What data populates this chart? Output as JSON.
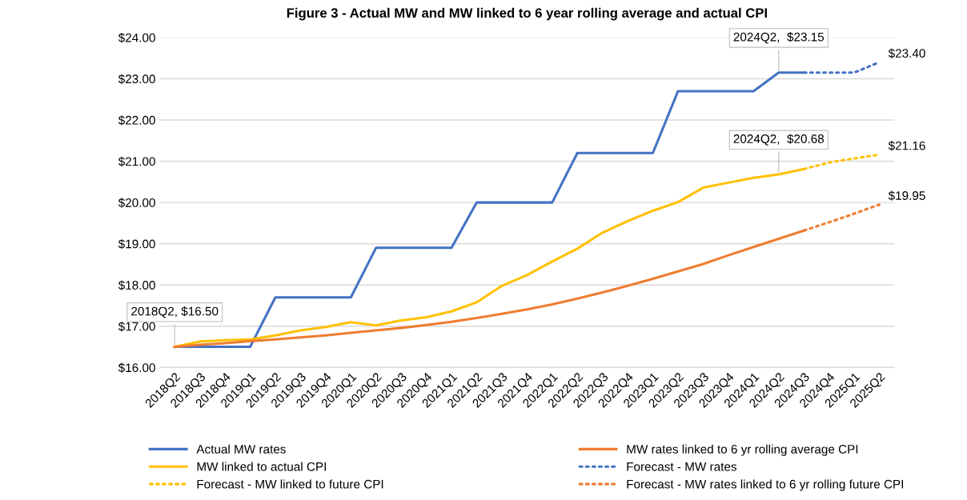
{
  "chart_data": {
    "type": "line",
    "title": "Figure 3 - Actual MW and MW linked to 6 year rolling average and actual CPI",
    "categories": [
      "2018Q2",
      "2018Q3",
      "2018Q4",
      "2019Q1",
      "2019Q2",
      "2019Q3",
      "2019Q4",
      "2020Q1",
      "2020Q2",
      "2020Q3",
      "2020Q4",
      "2021Q1",
      "2021Q2",
      "2021Q3",
      "2021Q4",
      "2022Q1",
      "2022Q2",
      "2022Q3",
      "2022Q4",
      "2023Q1",
      "2023Q2",
      "2023Q3",
      "2023Q4",
      "2024Q1",
      "2024Q2",
      "2024Q3",
      "2024Q4",
      "2025Q1",
      "2025Q2"
    ],
    "series": [
      {
        "name": "Actual MW rates",
        "color": "#4472c4",
        "line_style": "solid",
        "values": [
          16.5,
          16.5,
          16.5,
          16.5,
          17.7,
          17.7,
          17.7,
          17.7,
          18.9,
          18.9,
          18.9,
          18.9,
          20.0,
          20.0,
          20.0,
          20.0,
          21.2,
          21.2,
          21.2,
          21.2,
          22.7,
          22.7,
          22.7,
          22.7,
          23.15,
          23.15,
          null,
          null,
          null
        ]
      },
      {
        "name": "MW linked to actual CPI",
        "color": "#ffc000",
        "line_style": "solid",
        "values": [
          16.5,
          16.63,
          16.66,
          16.68,
          16.78,
          16.9,
          16.98,
          17.1,
          17.02,
          17.14,
          17.22,
          17.36,
          17.58,
          17.98,
          18.24,
          18.57,
          18.88,
          19.27,
          19.55,
          19.8,
          20.01,
          20.36,
          20.48,
          20.6,
          20.68,
          20.81,
          null,
          null,
          null
        ]
      },
      {
        "name": "Forecast - MW linked to future CPI",
        "color": "#ffc000",
        "line_style": "dotted",
        "values": [
          null,
          null,
          null,
          null,
          null,
          null,
          null,
          null,
          null,
          null,
          null,
          null,
          null,
          null,
          null,
          null,
          null,
          null,
          null,
          null,
          null,
          null,
          null,
          null,
          null,
          20.81,
          20.97,
          21.07,
          21.16
        ]
      },
      {
        "name": "MW rates linked to 6 yr rolling average CPI",
        "color": "#ed7d31",
        "line_style": "solid",
        "values": [
          16.5,
          16.55,
          16.59,
          16.64,
          16.68,
          16.73,
          16.78,
          16.84,
          16.9,
          16.96,
          17.03,
          17.11,
          17.2,
          17.3,
          17.41,
          17.53,
          17.67,
          17.82,
          17.98,
          18.15,
          18.33,
          18.51,
          18.72,
          18.92,
          19.12,
          19.32,
          null,
          null,
          null
        ]
      },
      {
        "name": "Forecast - MW rates",
        "color": "#4472c4",
        "line_style": "dotted",
        "values": [
          null,
          null,
          null,
          null,
          null,
          null,
          null,
          null,
          null,
          null,
          null,
          null,
          null,
          null,
          null,
          null,
          null,
          null,
          null,
          null,
          null,
          null,
          null,
          null,
          null,
          23.15,
          23.15,
          23.15,
          23.4
        ]
      },
      {
        "name": "Forecast - MW rates linked to 6 yr rolling future CPI",
        "color": "#ed7d31",
        "line_style": "dotted",
        "values": [
          null,
          null,
          null,
          null,
          null,
          null,
          null,
          null,
          null,
          null,
          null,
          null,
          null,
          null,
          null,
          null,
          null,
          null,
          null,
          null,
          null,
          null,
          null,
          null,
          null,
          19.32,
          19.52,
          19.73,
          19.95
        ]
      }
    ],
    "annotations": [
      {
        "text": "2018Q2, $16.50",
        "x": "2018Q2",
        "y": 16.5
      },
      {
        "text": "2024Q2,  $23.15",
        "x": "2024Q2",
        "y": 23.15
      },
      {
        "text": "2024Q2,  $20.68",
        "x": "2024Q2",
        "y": 20.68
      },
      {
        "text": "$23.40",
        "x": "2025Q2",
        "y": 23.4
      },
      {
        "text": "$21.16",
        "x": "2025Q2",
        "y": 21.16
      },
      {
        "text": "$19.95",
        "x": "2025Q2",
        "y": 19.95
      }
    ],
    "ylim": [
      16,
      24
    ],
    "yticks": [
      {
        "value": 16,
        "label": "$16.00"
      },
      {
        "value": 17,
        "label": "$17.00"
      },
      {
        "value": 18,
        "label": "$18.00"
      },
      {
        "value": 19,
        "label": "$19.00"
      },
      {
        "value": 20,
        "label": "$20.00"
      },
      {
        "value": 21,
        "label": "$21.00"
      },
      {
        "value": 22,
        "label": "$22.00"
      },
      {
        "value": 23,
        "label": "$23.00"
      },
      {
        "value": 24,
        "label": "$24.00"
      }
    ],
    "grid": "y",
    "legend": "bottom",
    "marker": "none"
  }
}
